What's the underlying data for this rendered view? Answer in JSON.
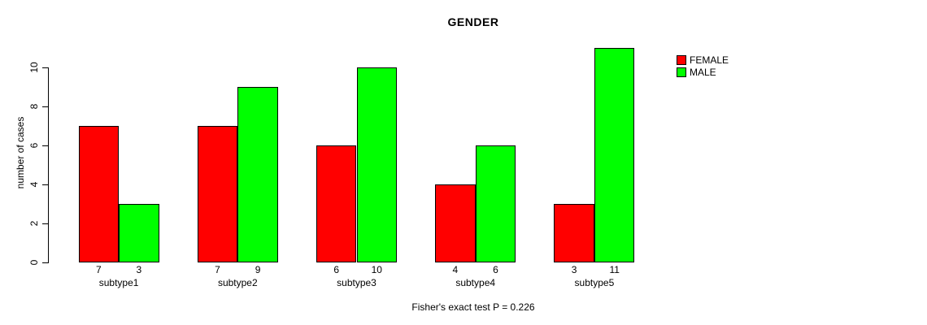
{
  "title": "GENDER",
  "footer": "Fisher's exact test P = 0.226",
  "y_axis": {
    "label": "number of cases",
    "ticks": [
      0,
      2,
      4,
      6,
      8,
      10
    ]
  },
  "legend": [
    {
      "label": "FEMALE",
      "color": "#ff0000"
    },
    {
      "label": "MALE",
      "color": "#00ff00"
    }
  ],
  "colors": {
    "female": "#ff0000",
    "male": "#00ff00",
    "axis": "#000000",
    "background": "#ffffff"
  },
  "chart_data": {
    "type": "bar",
    "title": "GENDER",
    "xlabel": "",
    "ylabel": "number of cases",
    "categories": [
      "subtype1",
      "subtype2",
      "subtype3",
      "subtype4",
      "subtype5"
    ],
    "series": [
      {
        "name": "FEMALE",
        "color": "#ff0000",
        "values": [
          7,
          7,
          6,
          4,
          3
        ]
      },
      {
        "name": "MALE",
        "color": "#00ff00",
        "values": [
          3,
          9,
          10,
          6,
          11
        ]
      }
    ],
    "ylim": [
      0,
      10
    ],
    "grid": false,
    "legend_position": "top-right",
    "bar_value_labels": true,
    "annotation": "Fisher's exact test P = 0.226"
  }
}
